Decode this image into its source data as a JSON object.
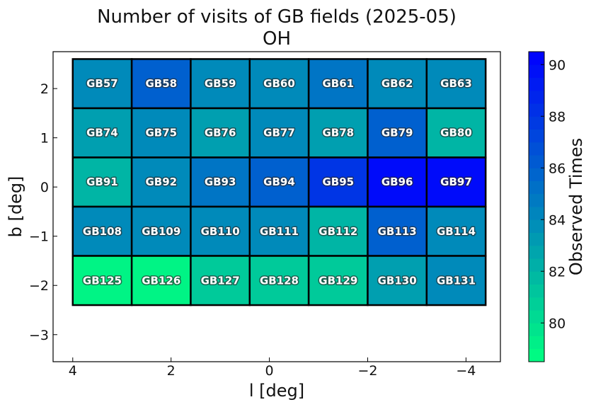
{
  "chart_data": {
    "type": "heatmap",
    "title": "Number of visits of GB fields (2025-05)",
    "subtitle": "OH",
    "xlabel": "l [deg]",
    "ylabel": "b [deg]",
    "colorbar_label": "Observed Times",
    "xlim": [
      4.4,
      -4.7
    ],
    "ylim": [
      -3.55,
      2.75
    ],
    "x_ticks": [
      4,
      2,
      0,
      -2,
      -4
    ],
    "x_tick_labels": [
      "4",
      "2",
      "0",
      "−2",
      "−4"
    ],
    "y_ticks": [
      2,
      1,
      0,
      -1,
      -2,
      -3
    ],
    "y_tick_labels": [
      "2",
      "1",
      "0",
      "−1",
      "−2",
      "−3"
    ],
    "colorbar_range": [
      78.5,
      90.5
    ],
    "colorbar_ticks": [
      80,
      82,
      84,
      86,
      88,
      90
    ],
    "colorbar_colors": {
      "low": "#00ff80",
      "high": "#0000ff"
    },
    "grid": false,
    "cell_l_edges": [
      4.0,
      2.8,
      1.6,
      0.4,
      -0.8,
      -2.0,
      -3.2,
      -4.4
    ],
    "cell_b_edges": [
      2.6,
      1.6,
      0.6,
      -0.4,
      -1.4,
      -2.4
    ],
    "cells": [
      [
        {
          "label": "GB57",
          "value": 84
        },
        {
          "label": "GB58",
          "value": 86
        },
        {
          "label": "GB59",
          "value": 84
        },
        {
          "label": "GB60",
          "value": 84
        },
        {
          "label": "GB61",
          "value": 85
        },
        {
          "label": "GB62",
          "value": 84
        },
        {
          "label": "GB63",
          "value": 84
        }
      ],
      [
        {
          "label": "GB74",
          "value": 83
        },
        {
          "label": "GB75",
          "value": 84
        },
        {
          "label": "GB76",
          "value": 83
        },
        {
          "label": "GB77",
          "value": 84
        },
        {
          "label": "GB78",
          "value": 83
        },
        {
          "label": "GB79",
          "value": 86
        },
        {
          "label": "GB80",
          "value": 82
        }
      ],
      [
        {
          "label": "GB91",
          "value": 82
        },
        {
          "label": "GB92",
          "value": 84
        },
        {
          "label": "GB93",
          "value": 85
        },
        {
          "label": "GB94",
          "value": 86
        },
        {
          "label": "GB95",
          "value": 88
        },
        {
          "label": "GB96",
          "value": 90
        },
        {
          "label": "GB97",
          "value": 90
        }
      ],
      [
        {
          "label": "GB108",
          "value": 84
        },
        {
          "label": "GB109",
          "value": 84
        },
        {
          "label": "GB110",
          "value": 84
        },
        {
          "label": "GB111",
          "value": 84
        },
        {
          "label": "GB112",
          "value": 82
        },
        {
          "label": "GB113",
          "value": 86
        },
        {
          "label": "GB114",
          "value": 84
        }
      ],
      [
        {
          "label": "GB125",
          "value": 79
        },
        {
          "label": "GB126",
          "value": 79
        },
        {
          "label": "GB127",
          "value": 81
        },
        {
          "label": "GB128",
          "value": 81
        },
        {
          "label": "GB129",
          "value": 81
        },
        {
          "label": "GB130",
          "value": 83
        },
        {
          "label": "GB131",
          "value": 84
        }
      ]
    ]
  }
}
